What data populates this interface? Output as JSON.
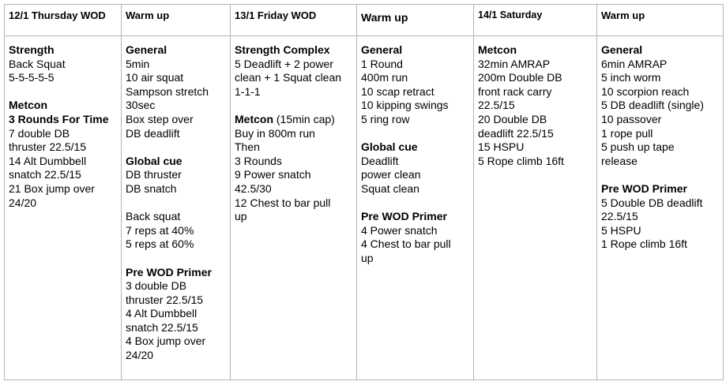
{
  "table": {
    "headers": [
      "12/1 Thursday WOD",
      "Warm up",
      "13/1 Friday WOD",
      "Warm up",
      "14/1 Saturday",
      "Warm up"
    ],
    "columns": [
      [
        {
          "b": "Strength"
        },
        "Back Squat",
        "5-5-5-5-5",
        "",
        {
          "b": "Metcon"
        },
        {
          "b": "3 Rounds For Time"
        },
        "7 double DB",
        "thruster 22.5/15",
        "14 Alt Dumbbell",
        "snatch 22.5/15",
        "21 Box jump over",
        "24/20"
      ],
      [
        {
          "b": "General"
        },
        "5min",
        "10 air squat",
        "Sampson stretch",
        "30sec",
        "Box step over",
        "DB deadlift",
        "",
        {
          "b": "Global cue"
        },
        "DB thruster",
        "DB snatch",
        "",
        "Back squat",
        "7 reps at 40%",
        "5 reps at 60%",
        "",
        {
          "b": "Pre WOD Primer"
        },
        "3 double DB",
        "thruster 22.5/15",
        "4 Alt Dumbbell",
        "snatch 22.5/15",
        "4 Box jump over",
        "24/20"
      ],
      [
        {
          "b": "Strength Complex"
        },
        "5 Deadlift + 2 power",
        "clean + 1 Squat clean",
        "1-1-1",
        "",
        {
          "b": "Metcon",
          "t": " (15min cap)"
        },
        "Buy in 800m run",
        "Then",
        "3 Rounds",
        "9 Power snatch",
        "42.5/30",
        "12 Chest to bar pull",
        "up"
      ],
      [
        {
          "b": "General"
        },
        "1 Round",
        "400m run",
        "10 scap retract",
        "10 kipping swings",
        "5 ring row",
        "",
        {
          "b": "Global cue"
        },
        "Deadlift",
        "power clean",
        "Squat clean",
        "",
        {
          "b": "Pre WOD Primer"
        },
        "4 Power snatch",
        "4 Chest to bar pull",
        "up"
      ],
      [
        {
          "b": "Metcon"
        },
        "32min AMRAP",
        "200m Double DB",
        "front rack carry",
        "22.5/15",
        "20 Double DB",
        "deadlift 22.5/15",
        "15 HSPU",
        "5 Rope climb 16ft"
      ],
      [
        {
          "b": "General"
        },
        "6min AMRAP",
        "5 inch worm",
        "10 scorpion reach",
        "5 DB deadlift (single)",
        "10 passover",
        "1 rope pull",
        "5 push up tape",
        "release",
        "",
        {
          "b": "Pre WOD Primer"
        },
        "5 Double DB  deadlift",
        "22.5/15",
        "5 HSPU",
        "1 Rope climb 16ft"
      ]
    ]
  }
}
